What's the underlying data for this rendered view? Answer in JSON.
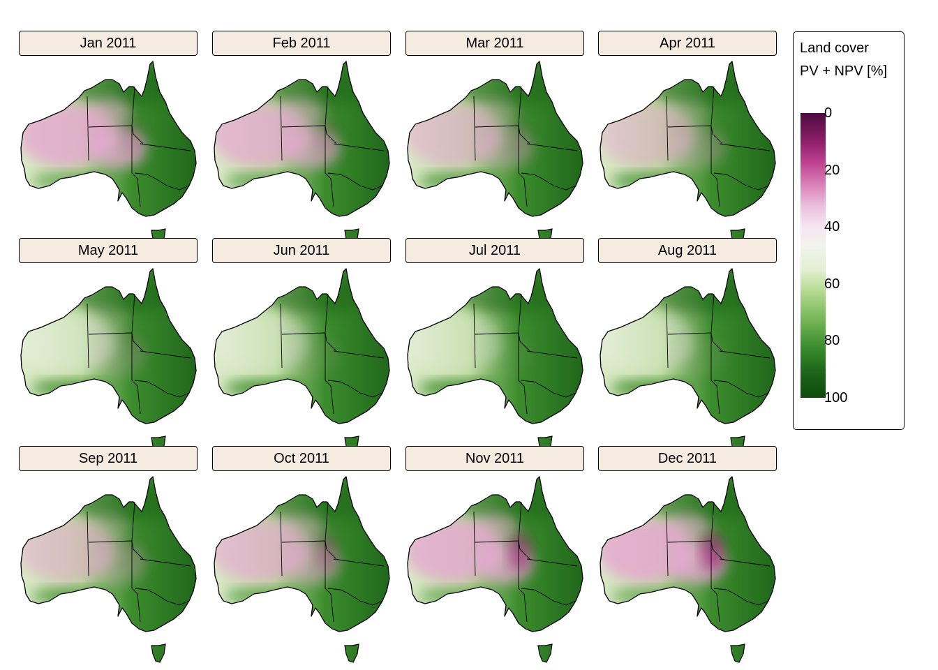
{
  "panels": [
    {
      "label": "Jan 2011",
      "pink": 0.75,
      "dark": 0.15
    },
    {
      "label": "Feb 2011",
      "pink": 0.65,
      "dark": 0.15
    },
    {
      "label": "Mar 2011",
      "pink": 0.4,
      "dark": 0.1
    },
    {
      "label": "Apr 2011",
      "pink": 0.3,
      "dark": 0.05
    },
    {
      "label": "May 2011",
      "pink": 0.2,
      "dark": 0.05
    },
    {
      "label": "Jun 2011",
      "pink": 0.1,
      "dark": 0.0
    },
    {
      "label": "Jul 2011",
      "pink": 0.05,
      "dark": 0.0
    },
    {
      "label": "Aug 2011",
      "pink": 0.1,
      "dark": 0.0
    },
    {
      "label": "Sep 2011",
      "pink": 0.35,
      "dark": 0.05
    },
    {
      "label": "Oct 2011",
      "pink": 0.55,
      "dark": 0.3
    },
    {
      "label": "Nov 2011",
      "pink": 0.75,
      "dark": 0.6
    },
    {
      "label": "Dec 2011",
      "pink": 0.8,
      "dark": 0.7
    }
  ],
  "legend": {
    "title_line1": "Land cover",
    "title_line2": "PV + NPV [%]",
    "ticks": [
      "0",
      "20",
      "40",
      "60",
      "80",
      "100"
    ],
    "range": [
      0,
      100
    ],
    "reversed": true,
    "colors": {
      "low": "#4d0a3f",
      "mid": "#f2f3ee",
      "high": "#0e4a0c",
      "pink": "#e6a9d2",
      "green": "#3d8d2e",
      "dark_green": "#1d6519",
      "magenta": "#a0287a"
    }
  }
}
